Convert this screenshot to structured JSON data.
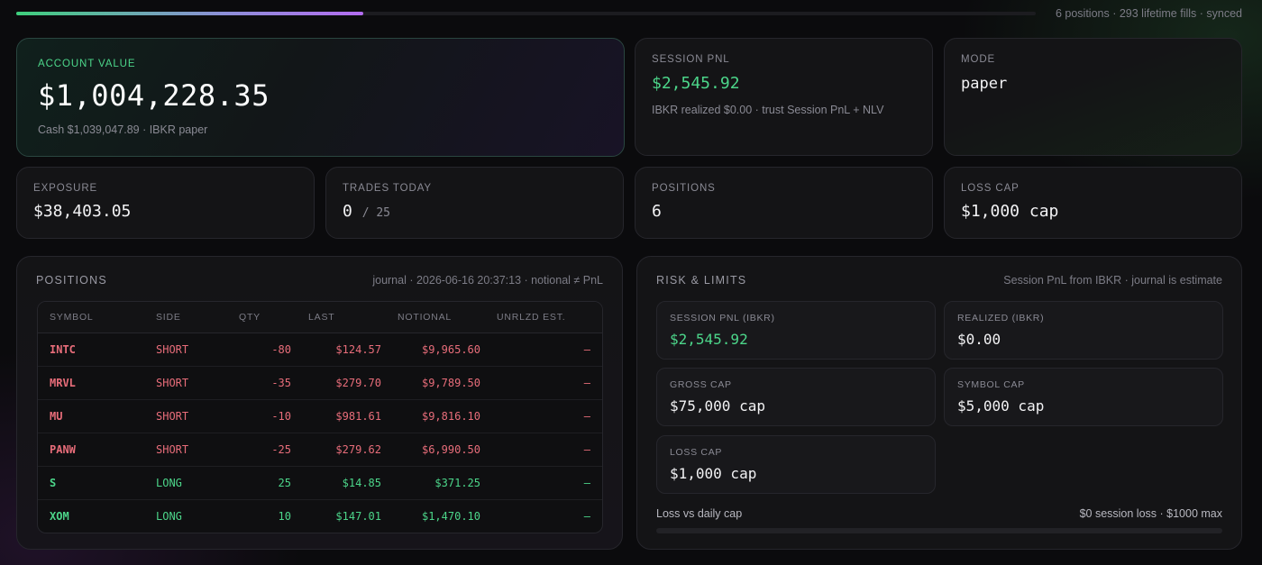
{
  "top": {
    "status": "6 positions · 293 lifetime fills · synced",
    "progress": 0.34
  },
  "account": {
    "label": "ACCOUNT VALUE",
    "value": "$1,004,228.35",
    "sub": "Cash $1,039,047.89 · IBKR paper"
  },
  "session": {
    "label": "SESSION PNL",
    "value": "$2,545.92",
    "sub": "IBKR realized $0.00 · trust Session PnL + NLV"
  },
  "mode": {
    "label": "MODE",
    "value": "paper"
  },
  "stats": {
    "exposure": {
      "label": "EXPOSURE",
      "value": "$38,403.05"
    },
    "trades": {
      "label": "TRADES TODAY",
      "value": "0",
      "denom": "/ 25"
    },
    "positions": {
      "label": "POSITIONS",
      "value": "6"
    },
    "loss_cap": {
      "label": "LOSS CAP",
      "value": "$1,000 cap"
    }
  },
  "positions_panel": {
    "title": "POSITIONS",
    "note": "journal · 2026-06-16 20:37:13 · notional ≠ PnL",
    "columns": [
      "SYMBOL",
      "SIDE",
      "QTY",
      "LAST",
      "NOTIONAL",
      "UNRLZD EST."
    ],
    "rows": [
      {
        "symbol": "INTC",
        "side": "SHORT",
        "qty": "-80",
        "last": "$124.57",
        "notional": "$9,965.60",
        "unrlzd": "—"
      },
      {
        "symbol": "MRVL",
        "side": "SHORT",
        "qty": "-35",
        "last": "$279.70",
        "notional": "$9,789.50",
        "unrlzd": "—"
      },
      {
        "symbol": "MU",
        "side": "SHORT",
        "qty": "-10",
        "last": "$981.61",
        "notional": "$9,816.10",
        "unrlzd": "—"
      },
      {
        "symbol": "PANW",
        "side": "SHORT",
        "qty": "-25",
        "last": "$279.62",
        "notional": "$6,990.50",
        "unrlzd": "—"
      },
      {
        "symbol": "S",
        "side": "LONG",
        "qty": "25",
        "last": "$14.85",
        "notional": "$371.25",
        "unrlzd": "—"
      },
      {
        "symbol": "XOM",
        "side": "LONG",
        "qty": "10",
        "last": "$147.01",
        "notional": "$1,470.10",
        "unrlzd": "—"
      }
    ]
  },
  "risk_panel": {
    "title": "RISK & LIMITS",
    "note": "Session PnL from IBKR · journal is estimate",
    "session_pnl": {
      "label": "SESSION PNL (IBKR)",
      "value": "$2,545.92"
    },
    "realized": {
      "label": "REALIZED (IBKR)",
      "value": "$0.00"
    },
    "gross_cap": {
      "label": "GROSS CAP",
      "value": "$75,000 cap"
    },
    "symbol_cap": {
      "label": "SYMBOL CAP",
      "value": "$5,000 cap"
    },
    "loss_cap": {
      "label": "LOSS CAP",
      "value": "$1,000 cap"
    },
    "loss_label": "Loss vs daily cap",
    "loss_summary": "$0 session loss · $1000 max",
    "loss_fraction": 0
  },
  "colors": {
    "positive": "#4cd68a",
    "negative": "#e86d7a"
  }
}
